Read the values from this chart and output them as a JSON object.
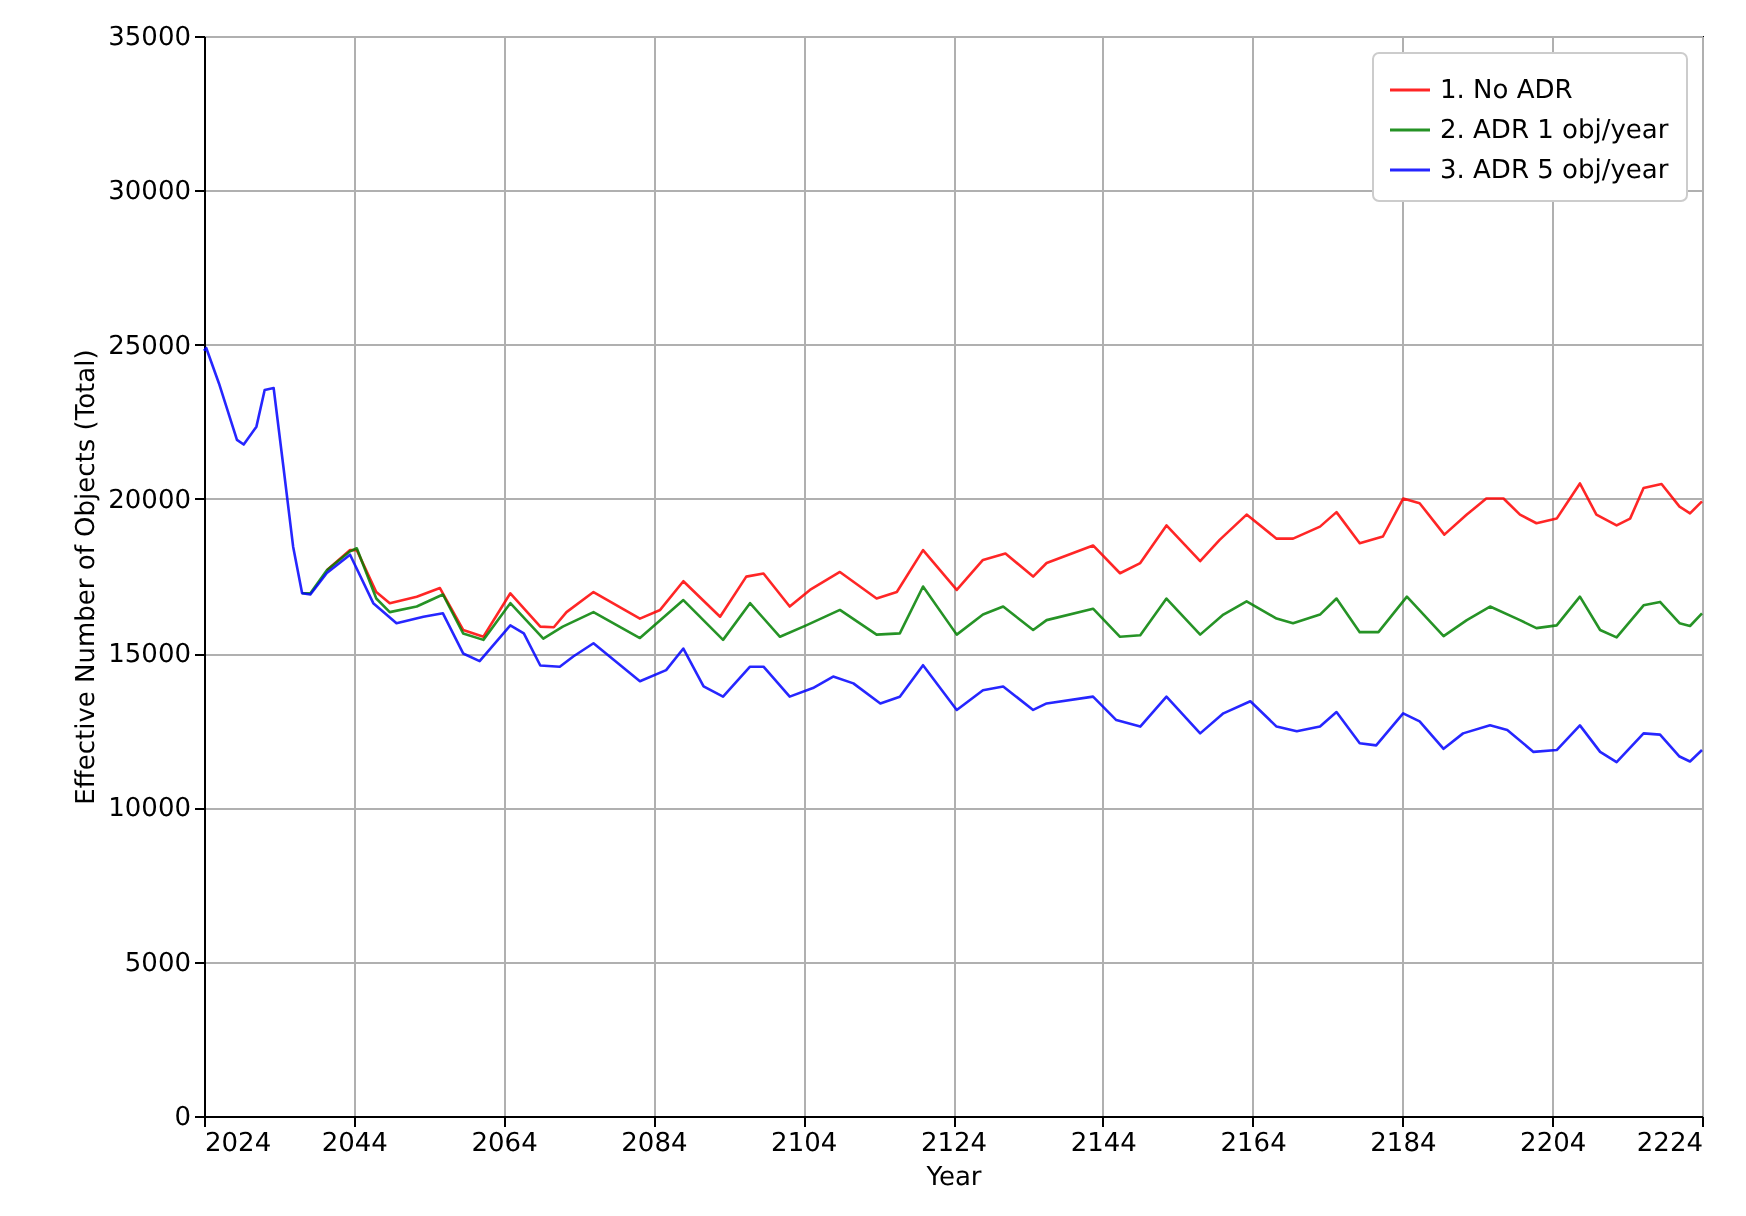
{
  "chart_data": {
    "type": "line",
    "xlabel": "Year",
    "ylabel": "Effective Number of Objects (Total)",
    "xlim": [
      2024,
      2224
    ],
    "xticks": [
      2024,
      2044,
      2064,
      2084,
      2104,
      2124,
      2144,
      2164,
      2184,
      2204,
      2224
    ],
    "ylim": [
      0,
      35000
    ],
    "yticks": [
      0,
      5000,
      10000,
      15000,
      20000,
      25000,
      30000,
      35000
    ],
    "grid": true,
    "legend": "top right",
    "line_style": "solid",
    "marker": "none",
    "series": [
      {
        "name": "1. No ADR",
        "color": "#ff0000",
        "x": [
          2040.4,
          2043.5,
          2044.4,
          2047,
          2048.8,
          2052.4,
          2055.5,
          2058.6,
          2061.3,
          2064.9,
          2068.9,
          2070.7,
          2072.4,
          2076,
          2082.2,
          2084.9,
          2088,
          2092.9,
          2096.4,
          2098.7,
          2102.2,
          2104.9,
          2108.9,
          2113.8,
          2116.5,
          2120,
          2124.5,
          2128,
          2131,
          2134.7,
          2136.5,
          2142.7,
          2146.3,
          2149,
          2152.5,
          2157,
          2159.6,
          2163.2,
          2167.2,
          2169.4,
          2173,
          2175.2,
          2178.3,
          2181.4,
          2184.1,
          2186.3,
          2189.6,
          2192.6,
          2195.2,
          2197.5,
          2199.7,
          2201.9,
          2204.6,
          2207.7,
          2209.9,
          2212.6,
          2214.4,
          2216.2,
          2218.6,
          2221,
          2222.4,
          2224
        ],
        "values": [
          17690,
          18340,
          18340,
          16980,
          16620,
          16830,
          17110,
          15750,
          15530,
          16940,
          15860,
          15840,
          16330,
          16980,
          16120,
          16400,
          17330,
          16180,
          17480,
          17580,
          16510,
          17050,
          17630,
          16770,
          16980,
          18340,
          17050,
          18020,
          18230,
          17480,
          17920,
          18490,
          17590,
          17920,
          19140,
          17980,
          18670,
          19490,
          18710,
          18710,
          19100,
          19570,
          18560,
          18780,
          20010,
          19860,
          18840,
          19490,
          20010,
          20010,
          19490,
          19210,
          19360,
          20500,
          19490,
          19140,
          19360,
          20350,
          20480,
          19750,
          19530,
          19920
        ]
      },
      {
        "name": "2. ADR 1 obj/year",
        "color": "#008000",
        "x": [
          2037.1,
          2038.2,
          2040.4,
          2043.5,
          2044.4,
          2047,
          2048.8,
          2052.4,
          2055.9,
          2058.6,
          2061.3,
          2064.9,
          2069.3,
          2071.9,
          2076,
          2082.2,
          2088,
          2093.3,
          2096.9,
          2100.9,
          2104.4,
          2108.9,
          2113.8,
          2116.9,
          2120,
          2124.5,
          2128,
          2130.7,
          2134.7,
          2136.5,
          2142.7,
          2146.3,
          2149,
          2152.5,
          2157,
          2160.1,
          2163.2,
          2167.2,
          2169.4,
          2173,
          2175.2,
          2178.3,
          2180.8,
          2184.6,
          2189.5,
          2192.6,
          2195.7,
          2199.7,
          2201.9,
          2204.6,
          2207.7,
          2210.4,
          2212.6,
          2216.2,
          2218.4,
          2221,
          2222.4,
          2224
        ],
        "values": [
          16940,
          16940,
          17690,
          18300,
          18400,
          16770,
          16330,
          16510,
          16900,
          15640,
          15430,
          16620,
          15470,
          15860,
          16330,
          15490,
          16720,
          15430,
          16620,
          15530,
          15900,
          16400,
          15600,
          15640,
          17160,
          15600,
          16250,
          16510,
          15750,
          16070,
          16440,
          15530,
          15580,
          16770,
          15600,
          16250,
          16680,
          16120,
          15970,
          16250,
          16770,
          15680,
          15680,
          16830,
          15550,
          16070,
          16510,
          16070,
          15810,
          15900,
          16830,
          15750,
          15510,
          16550,
          16660,
          15970,
          15880,
          16290
        ]
      },
      {
        "name": "3. ADR 5 obj/year",
        "color": "#0000ff",
        "x": [
          2024,
          2024.3,
          2026,
          2028.4,
          2029.3,
          2031,
          2032.1,
          2033.3,
          2034.6,
          2035.9,
          2037.1,
          2038.2,
          2040.4,
          2043.5,
          2046.6,
          2049.7,
          2053.3,
          2055.9,
          2058.6,
          2060.8,
          2064.9,
          2066.7,
          2068.9,
          2071.5,
          2073.3,
          2076,
          2082.2,
          2085.7,
          2088,
          2090.7,
          2093.3,
          2096.9,
          2098.7,
          2102.2,
          2105.3,
          2108,
          2110.7,
          2114.3,
          2116.9,
          2120,
          2124.5,
          2128,
          2130.7,
          2134.7,
          2136.5,
          2142.7,
          2145.8,
          2149,
          2152.5,
          2157,
          2160.1,
          2163.7,
          2167.2,
          2169.9,
          2173,
          2175.2,
          2178.3,
          2180.5,
          2184.1,
          2186.3,
          2189.5,
          2192.1,
          2195.7,
          2198,
          2201.5,
          2204.6,
          2207.7,
          2210.4,
          2212.6,
          2216.2,
          2218.4,
          2221,
          2222.4,
          2224
        ],
        "values": [
          24800,
          24890,
          23740,
          21910,
          21760,
          22340,
          23530,
          23590,
          21040,
          18450,
          16940,
          16900,
          17600,
          18190,
          16620,
          15970,
          16180,
          16290,
          14990,
          14740,
          15900,
          15640,
          14600,
          14560,
          14890,
          15320,
          14090,
          14450,
          15150,
          13920,
          13590,
          14560,
          14560,
          13590,
          13870,
          14240,
          14020,
          13370,
          13590,
          14610,
          13160,
          13800,
          13920,
          13160,
          13370,
          13590,
          12830,
          12620,
          13590,
          12400,
          13050,
          13440,
          12620,
          12470,
          12620,
          13090,
          12080,
          12010,
          13050,
          12790,
          11900,
          12400,
          12660,
          12510,
          11800,
          11860,
          12660,
          11800,
          11470,
          12400,
          12360,
          11650,
          11490,
          11860
        ]
      }
    ]
  }
}
